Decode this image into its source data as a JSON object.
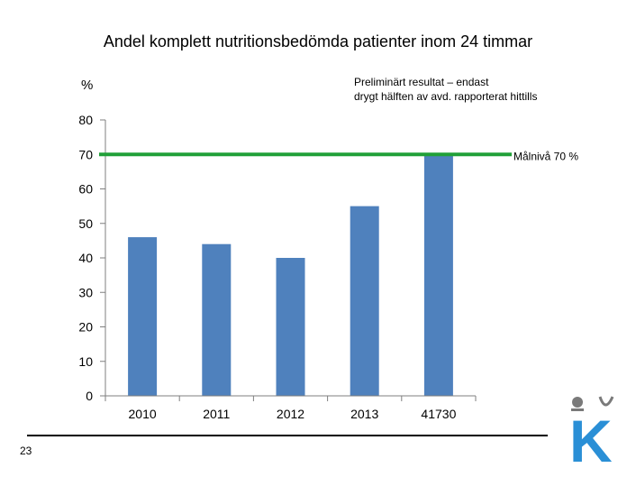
{
  "chart_data": {
    "type": "bar",
    "title": "Andel komplett nutritionsbedömda patienter inom 24 timmar",
    "ylabel": "%",
    "xlabel": "",
    "categories": [
      "2010",
      "2011",
      "2012",
      "2013",
      "41730"
    ],
    "values": [
      46,
      44,
      40,
      55,
      70
    ],
    "ylim": [
      0,
      80
    ],
    "yticks": [
      "0",
      "10",
      "20",
      "30",
      "40",
      "50",
      "60",
      "70",
      "80"
    ],
    "bar_color": "#4f81bd",
    "grid": false,
    "annotation": {
      "lines": [
        "Preliminärt resultat – endast",
        "drygt hälften av avd. rapporterat hittills"
      ]
    },
    "target": {
      "value": 70,
      "label": "Målnivå 70 %",
      "color": "#21a038"
    }
  },
  "footer": {
    "slide_number": "23"
  },
  "logo": {
    "letter": "K",
    "color": "#2a8fd6",
    "crown_color": "#7a7a7a"
  }
}
